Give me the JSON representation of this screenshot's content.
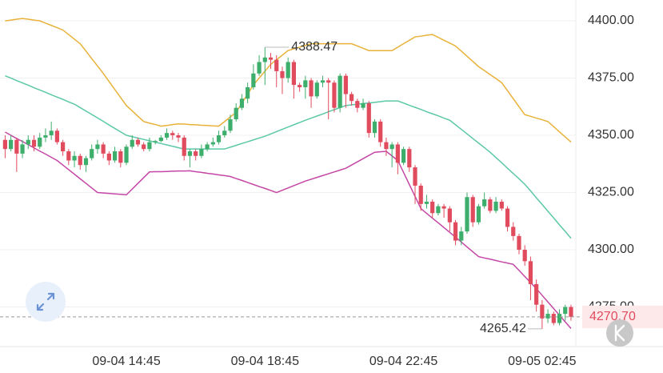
{
  "chart_data": {
    "type": "candlestick",
    "categories": [
      null,
      null,
      null,
      null,
      null,
      null,
      null,
      null,
      null,
      null,
      null,
      null,
      null,
      null,
      null,
      null,
      null,
      null,
      null,
      null,
      null,
      "09-04 14:45",
      null,
      null,
      null,
      null,
      null,
      null,
      null,
      null,
      null,
      null,
      null,
      null,
      null,
      null,
      null,
      null,
      null,
      null,
      null,
      null,
      null,
      null,
      null,
      "09-04 18:45",
      null,
      null,
      null,
      null,
      null,
      null,
      null,
      null,
      null,
      null,
      null,
      null,
      null,
      null,
      null,
      null,
      null,
      null,
      null,
      null,
      null,
      null,
      null,
      "09-04 22:45",
      null,
      null,
      null,
      null,
      null,
      null,
      null,
      null,
      null,
      null,
      null,
      null,
      null,
      null,
      null,
      null,
      null,
      null,
      null,
      null,
      null,
      null,
      null,
      "09-05 02:45",
      null,
      null,
      null,
      null,
      null
    ],
    "open": [
      4348,
      4344,
      4348,
      4342,
      4346,
      4348,
      4345,
      4349,
      4350,
      4352,
      4347,
      4343,
      4339,
      4341,
      4337,
      4340,
      4344,
      4346,
      4342,
      4339,
      4343,
      4338,
      4345,
      4348,
      4346,
      4344,
      4347,
      4347.5,
      4349,
      4351,
      4350,
      4349,
      4341,
      4343,
      4341,
      4344,
      4346,
      4347,
      4350,
      4352,
      4357,
      4362,
      4366,
      4371,
      4377,
      4382,
      4384,
      4383,
      4378,
      4375,
      4382,
      4372,
      4371,
      4374,
      4367,
      4373,
      4374,
      4373,
      4362,
      4376,
      4368,
      4365,
      4362,
      4364,
      4351,
      4356,
      4347,
      4344,
      4346,
      4338,
      4344,
      4336,
      4328,
      4320,
      4321,
      4316,
      4319,
      4318,
      4312,
      4304,
      4308,
      4323,
      4312,
      4319,
      4322,
      4317,
      4321,
      4318,
      4310,
      4306,
      4300,
      4295,
      4285,
      4276,
      4270,
      4272,
      4268,
      4272,
      4275
    ],
    "high": [
      4350,
      4350,
      4349,
      4348,
      4350,
      4350,
      4351,
      4353,
      4356,
      4353,
      4348,
      4344,
      4343,
      4342,
      4341,
      4346,
      4348,
      4347,
      4343,
      4345,
      4344,
      4346,
      4350,
      4349,
      4347,
      4349,
      4348,
      4350,
      4353,
      4352,
      4351,
      4350,
      4344,
      4344,
      4346,
      4347,
      4349,
      4352,
      4354,
      4359,
      4364,
      4368,
      4373,
      4381,
      4385,
      4388.47,
      4386,
      4385,
      4380,
      4384,
      4383,
      4373,
      4376,
      4375,
      4374,
      4376,
      4375,
      4374,
      4377,
      4377,
      4369,
      4366,
      4366,
      4365,
      4357,
      4357,
      4349,
      4347,
      4347,
      4345,
      4345,
      4337,
      4329,
      4324,
      4322,
      4320,
      4320,
      4319,
      4313,
      4310,
      4325,
      4324,
      4320,
      4325,
      4323,
      4323,
      4322,
      4319,
      4312,
      4307,
      4302,
      4297,
      4287,
      4278,
      4274,
      4273,
      4274,
      4276,
      4276
    ],
    "low": [
      4340,
      4343,
      4334,
      4340,
      4344,
      4343,
      4344,
      4347,
      4348,
      4346,
      4341,
      4337,
      4336,
      4335,
      4334,
      4339,
      4342,
      4340,
      4337,
      4338,
      4336,
      4337,
      4344,
      4345,
      4343,
      4343,
      4346,
      4347,
      4348,
      4348,
      4347,
      4339,
      4336,
      4339,
      4340,
      4343,
      4345,
      4346,
      4349,
      4351,
      4356,
      4361,
      4364,
      4370,
      4376,
      4372,
      4379,
      4371,
      4368,
      4373,
      4366,
      4369,
      4366,
      4362,
      4366,
      4371,
      4357,
      4360,
      4360,
      4362,
      4363,
      4360,
      4361,
      4349,
      4349,
      4345,
      4341,
      4336,
      4333,
      4337,
      4334,
      4320,
      4317,
      4318,
      4314,
      4315,
      4314,
      4308,
      4302,
      4302,
      4307,
      4310,
      4311,
      4318,
      4316,
      4316,
      4317,
      4308,
      4304,
      4298,
      4293,
      4278,
      4273,
      4265.42,
      4268,
      4267,
      4267,
      4269,
      4269
    ],
    "close": [
      4344,
      4348,
      4342,
      4346,
      4348,
      4345,
      4349,
      4350,
      4352,
      4347,
      4343,
      4339,
      4341,
      4337,
      4340,
      4344,
      4346,
      4342,
      4339,
      4343,
      4338,
      4345,
      4348,
      4346,
      4344,
      4347,
      4347.5,
      4349,
      4351,
      4350,
      4349,
      4341,
      4343,
      4341,
      4344,
      4346,
      4347,
      4350,
      4352,
      4357,
      4362,
      4366,
      4371,
      4377,
      4382,
      4384,
      4383,
      4378,
      4375,
      4382,
      4372,
      4371,
      4374,
      4367,
      4373,
      4374,
      4373,
      4362,
      4376,
      4368,
      4365,
      4362,
      4364,
      4351,
      4356,
      4347,
      4344,
      4346,
      4338,
      4344,
      4336,
      4328,
      4320,
      4321,
      4316,
      4319,
      4318,
      4312,
      4304,
      4308,
      4323,
      4312,
      4319,
      4322,
      4317,
      4321,
      4318,
      4310,
      4306,
      4300,
      4295,
      4285,
      4276,
      4270,
      4272,
      4268,
      4272,
      4275,
      4270.7
    ],
    "up_color": "#3dae6b",
    "down_color": "#e14b5e",
    "bands": [
      {
        "color": "#e8b23a",
        "values": [
          4400.0,
          4400.3,
          4400.7,
          4401.0,
          4400.7,
          4400.3,
          4400.0,
          4399.0,
          4398.0,
          4397.0,
          4396.0,
          4394.0,
          4392.0,
          4390.0,
          4386.8,
          4383.5,
          4380.3,
          4377.0,
          4373.5,
          4370.0,
          4366.5,
          4363.0,
          4360.7,
          4358.3,
          4356.0,
          4355.3,
          4354.7,
          4354.0,
          4354.3,
          4354.7,
          4355.0,
          4354.9,
          4354.7,
          4354.6,
          4354.4,
          4354.3,
          4354.1,
          4354.0,
          4356.0,
          4358.0,
          4360.0,
          4364.0,
          4368.0,
          4372.0,
          4375.0,
          4378.0,
          4381.0,
          4383.0,
          4385.0,
          4387.0,
          4387.8,
          4388.5,
          4389.3,
          4390.0,
          4390.0,
          4390.0,
          4390.0,
          4390.0,
          4390.0,
          4390.0,
          4390.0,
          4389.0,
          4388.0,
          4387.0,
          4387.0,
          4387.0,
          4387.0,
          4387.0,
          4388.5,
          4390.0,
          4391.5,
          4393.0,
          4393.3,
          4393.7,
          4394.0,
          4392.8,
          4391.5,
          4390.3,
          4389.0,
          4386.8,
          4384.5,
          4382.3,
          4380.0,
          4378.3,
          4376.5,
          4374.8,
          4373.0,
          4369.5,
          4366.0,
          4362.5,
          4359.0,
          4358.3,
          4357.5,
          4356.8,
          4356.0,
          4353.8,
          4351.5,
          4349.3,
          4347.0
        ]
      },
      {
        "color": "#5cc8a8",
        "values": [
          4376.0,
          4375.0,
          4373.9,
          4372.9,
          4371.9,
          4370.8,
          4369.8,
          4368.8,
          4367.7,
          4366.7,
          4365.7,
          4364.6,
          4363.6,
          4362.1,
          4360.6,
          4359.1,
          4357.6,
          4356.1,
          4354.5,
          4353.0,
          4351.5,
          4350.0,
          4349.4,
          4348.8,
          4348.2,
          4347.6,
          4347.0,
          4346.4,
          4345.8,
          4345.2,
          4344.6,
          4344.0,
          4344.0,
          4344.0,
          4344.0,
          4344.0,
          4344.0,
          4344.0,
          4344.0,
          4344.8,
          4345.6,
          4346.4,
          4347.2,
          4348.0,
          4348.8,
          4349.6,
          4350.6,
          4351.6,
          4352.6,
          4353.6,
          4354.6,
          4355.6,
          4356.6,
          4357.5,
          4358.4,
          4359.3,
          4360.3,
          4361.2,
          4362.1,
          4363.0,
          4363.3,
          4363.6,
          4363.9,
          4364.1,
          4364.4,
          4364.7,
          4365.0,
          4365.0,
          4365.0,
          4364.1,
          4363.1,
          4362.2,
          4361.3,
          4360.3,
          4359.4,
          4358.5,
          4357.5,
          4356.6,
          4354.6,
          4352.6,
          4350.6,
          4348.6,
          4346.6,
          4344.6,
          4342.6,
          4340.3,
          4338.0,
          4335.6,
          4333.3,
          4331.0,
          4328.6,
          4325.7,
          4322.7,
          4319.8,
          4316.8,
          4313.9,
          4310.9,
          4308.0,
          4305.0
        ]
      },
      {
        "color": "#c447a6",
        "values": [
          4351.4,
          4350.0,
          4348.6,
          4347.3,
          4345.9,
          4344.5,
          4343.1,
          4341.8,
          4340.4,
          4339.0,
          4337.0,
          4335.0,
          4333.0,
          4331.0,
          4329.0,
          4327.0,
          4325.0,
          4324.8,
          4324.6,
          4324.4,
          4324.2,
          4324.0,
          4326.5,
          4329.0,
          4331.5,
          4334.0,
          4334.1,
          4334.1,
          4334.2,
          4334.3,
          4334.4,
          4334.4,
          4334.5,
          4334.1,
          4333.8,
          4333.4,
          4333.1,
          4332.7,
          4332.4,
          4332.0,
          4331.1,
          4330.3,
          4329.4,
          4328.5,
          4327.6,
          4326.8,
          4325.9,
          4325.0,
          4326.0,
          4327.0,
          4328.0,
          4329.0,
          4330.0,
          4330.8,
          4331.6,
          4332.4,
          4333.2,
          4334.0,
          4334.8,
          4335.6,
          4337.0,
          4338.4,
          4339.8,
          4341.2,
          4342.6,
          4342.8,
          4343.0,
          4341.0,
          4339.0,
          4333.8,
          4328.5,
          4323.3,
          4318.0,
          4315.9,
          4313.8,
          4311.8,
          4309.7,
          4307.6,
          4305.5,
          4303.4,
          4301.2,
          4299.1,
          4297.0,
          4296.4,
          4295.9,
          4295.3,
          4294.7,
          4294.2,
          4293.6,
          4291.0,
          4288.3,
          4285.7,
          4283.0,
          4280.1,
          4277.2,
          4274.3,
          4271.4,
          4268.5,
          4265.6
        ]
      }
    ],
    "last_price_label": "4270.70",
    "ylim": [
      4257.7,
      4409.1
    ],
    "yticks": [
      {
        "value": 4275,
        "label": "4275.00"
      },
      {
        "value": 4300,
        "label": "4300.00"
      },
      {
        "value": 4325,
        "label": "4325.00"
      },
      {
        "value": 4350,
        "label": "4350.00"
      },
      {
        "value": 4375,
        "label": "4375.00"
      },
      {
        "value": 4400,
        "label": "4400.00"
      }
    ],
    "grid": true
  }
}
